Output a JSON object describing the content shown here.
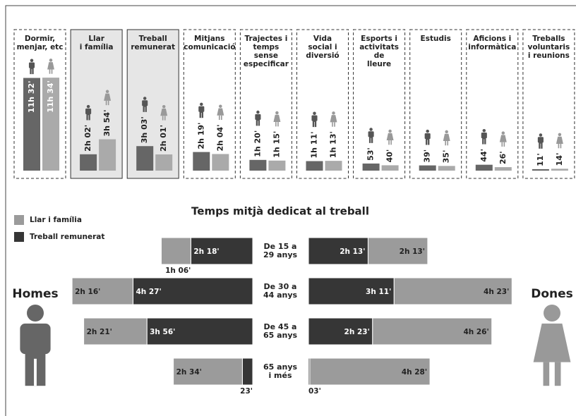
{
  "chart_data": [
    {
      "type": "bar",
      "categories": [
        "Dormir,\nmenjar, etc",
        "Llar\ni família",
        "Treball\nremunerat",
        "Mitjans\ncomunicació",
        "Trajectes i\ntemps\nsense\nespecificar",
        "Vida\nsocial i\ndiversió",
        "Esports i\nactivitats de\nlleure",
        "Estudis",
        "Aficions i\ninformàtica",
        "Treballs\nvoluntaris\ni reunions"
      ],
      "highlight": [
        1,
        2
      ],
      "series": [
        {
          "color": "#666666",
          "values": [
            692,
            122,
            183,
            139,
            80,
            71,
            53,
            39,
            44,
            11
          ],
          "value_labels": [
            "11h 32'",
            "2h 02'",
            "3h 03'",
            "2h 19'",
            "1h 20'",
            "1h 11'",
            "53'",
            "39'",
            "44'",
            "11'"
          ]
        },
        {
          "color": "#aaaaaa",
          "values": [
            694,
            234,
            121,
            124,
            75,
            73,
            40,
            35,
            26,
            14
          ],
          "value_labels": [
            "11h 34'",
            "3h 54'",
            "2h 01'",
            "2h 04'",
            "1h 15'",
            "1h 13'",
            "40'",
            "35'",
            "26'",
            "14'"
          ]
        }
      ]
    },
    {
      "type": "diverging-stacked-bar",
      "title": "Temps mitjà dedicat al treball",
      "categories": [
        "De 15 a\n29 anys",
        "De 30 a\n44 anys",
        "De 45 a\n65 anys",
        "65 anys\ni més"
      ],
      "series": [
        {
          "name": "Llar i família",
          "color": "#9b9b9b"
        },
        {
          "name": "Treball remunerat",
          "color": "#363636"
        }
      ],
      "sides": [
        {
          "name": "Homes",
          "values": [
            [
              66,
              136,
              141,
              154
            ],
            [
              138,
              267,
              236,
              23
            ]
          ],
          "value_labels": [
            [
              "1h 06'",
              "2h 16'",
              "2h 21'",
              "2h 34'"
            ],
            [
              "2h 18'",
              "4h 27'",
              "3h 56'",
              "23'"
            ]
          ]
        },
        {
          "name": "Dones",
          "values": [
            [
              133,
              263,
              266,
              268
            ],
            [
              133,
              191,
              143,
              3
            ]
          ],
          "value_labels": [
            [
              "2h 13'",
              "4h 23'",
              "4h 26'",
              "4h 28'"
            ],
            [
              "2h 13'",
              "3h 11'",
              "2h 23'",
              "03'"
            ]
          ]
        }
      ]
    }
  ]
}
